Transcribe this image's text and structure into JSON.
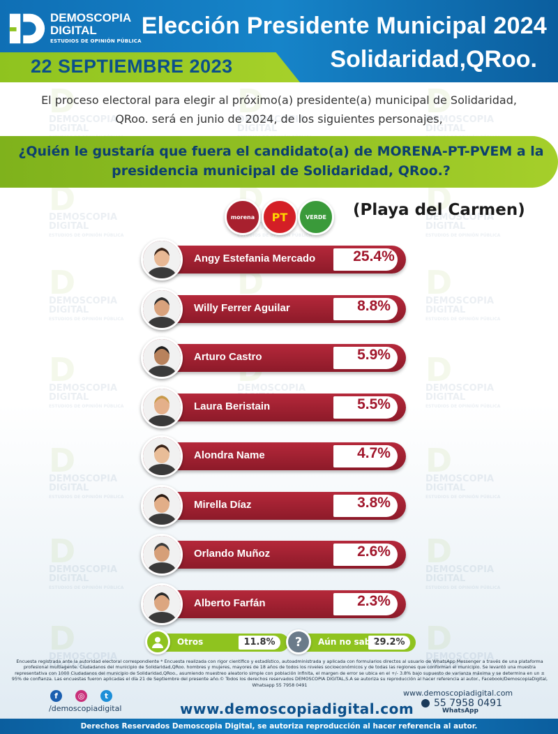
{
  "logo": {
    "line1": "DEMOSCOPIA",
    "line2": "DIGITAL",
    "line3": "ESTUDIOS DE OPINIÓN PÚBLICA"
  },
  "header": {
    "title_line1": "Elección Presidente Municipal 2024",
    "title_line2": "Solidaridad,QRoo.",
    "date": "22 SEPTIEMBRE 2023"
  },
  "intro": "El proceso electoral para elegir al próximo(a) presidente(a) municipal de Solidaridad, QRoo. será en junio de 2024, de los siguientes personajes,",
  "question": "¿Quién le gustaría que fuera el candidato(a) de MORENA-PT-PVEM a la presidencia municipal de Solidaridad, QRoo.?",
  "parties": {
    "morena": "morena",
    "pt": "PT",
    "verde": "VERDE"
  },
  "region": "(Playa del Carmen)",
  "watermark": {
    "line1": "DEMOSCOPIA",
    "line2": "DIGITAL",
    "line3": "ESTUDIOS DE OPINIÓN PÚBLICA"
  },
  "chart_data": {
    "type": "bar",
    "categories": [
      "Angy Estefania Mercado",
      "Willy Ferrer Aguilar",
      "Arturo Castro",
      "Laura Beristain",
      "Alondra Name",
      "Mirella Díaz",
      "Orlando Muñoz",
      "Alberto Farfán",
      "Otros",
      "Aún no sabe"
    ],
    "values": [
      25.4,
      8.8,
      5.9,
      5.5,
      4.7,
      3.8,
      2.6,
      2.3,
      11.8,
      29.2
    ],
    "value_labels": [
      "25.4%",
      "8.8%",
      "5.9%",
      "5.5%",
      "4.7%",
      "3.8%",
      "2.6%",
      "2.3%",
      "11.8%",
      "29.2%"
    ],
    "bar_color": "#a1162b",
    "other_color": "#8fc31f"
  },
  "fineprint": "Encuesta registrada ante la autoridad electoral correspondiente * Encuesta realizada con rigor científico y estadístico, autoadministrada y aplicada con formularios directos al usuario de WhatsApp Messenger a través de una plataforma profesional multiagente. Ciudadanos del municipio de Solidaridad,QRoo. hombres y mujeres, mayores de 18 años de todos los niveles socioeconómicos y de todas las regiones que conforman el municipio. Se levantó una muestra representativa con 1000 Ciudadanos del municipio de Solidaridad,QRoo., asumiendo muestreo aleatorio simple con población infinita, el margen de error se ubica en el +/- 3.8% bajo supuesto de varianza máxima y se determina en un ± 95% de confianza. Las encuestas fueron aplicadas el día 21 de Septiembre del presente año.© Todos los derechos reservados DEMOSCOPIA DIGITAL,S.A se autoriza su reproducción al hacer referencia al autor., Facebook/DemoscopiaDigital, Whatsapp 55 7958 0491",
  "contact": {
    "handle": "/demoscopiadigital",
    "website": "www.demoscopiadigital.com",
    "website_small": "www.demoscopiadigital.com",
    "whatsapp": "55 7958 0491",
    "whatsapp_label": "WhatsApp",
    "facebook_icon": "f",
    "instagram_icon": "◎",
    "twitter_icon": "t"
  },
  "footer": "Derechos Reservados Demoscopia Digital, se autoriza reproducción al hacer referencia al autor.",
  "icons": {
    "otros": "person-icon",
    "aun_no_sabe": "question-icon",
    "aun_no_sabe_glyph": "?"
  }
}
